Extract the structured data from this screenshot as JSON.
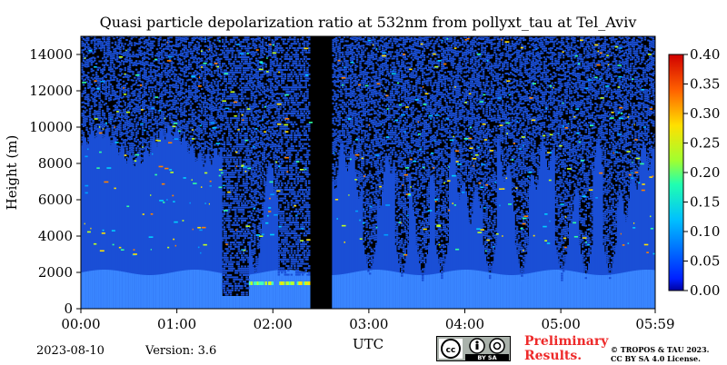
{
  "chart_data": {
    "type": "heatmap",
    "title": "Quasi particle depolarization ratio at 532nm from pollyxt_tau at Tel_Aviv",
    "xlabel": "UTC",
    "ylabel": "Height (m)",
    "x_ticks": [
      "00:00",
      "01:00",
      "02:00",
      "03:00",
      "04:00",
      "05:00",
      "05:59"
    ],
    "x_tick_minutes": [
      0,
      60,
      120,
      180,
      240,
      300,
      359
    ],
    "xlim_minutes": [
      0,
      359
    ],
    "y_ticks": [
      0,
      2000,
      4000,
      6000,
      8000,
      10000,
      12000,
      14000
    ],
    "ylim": [
      0,
      15000
    ],
    "colorbar": {
      "ticks": [
        "0.00",
        "0.05",
        "0.10",
        "0.15",
        "0.20",
        "0.25",
        "0.30",
        "0.35",
        "0.40"
      ],
      "range": [
        0.0,
        0.4
      ],
      "colormap": "jet"
    },
    "colors": {
      "no_data": "#000000",
      "background_signal": "#1a4fd6",
      "aerosol_layer": "#3a86ff"
    },
    "grid": false,
    "legend": "none"
  },
  "footer": {
    "date": "2023-08-10",
    "version": "Version: 3.6",
    "preliminary_line1": "Preliminary",
    "preliminary_line2": "Results.",
    "copyright_line1": "© TROPOS & TAU 2023.",
    "copyright_line2": "CC BY SA 4.0 License.",
    "license_badge_text": "BY SA"
  }
}
